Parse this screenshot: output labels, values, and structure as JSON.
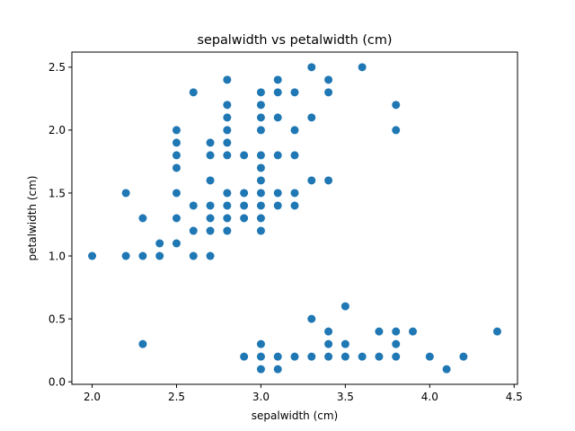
{
  "chart_data": {
    "type": "scatter",
    "title": "sepalwidth vs petalwidth (cm)",
    "xlabel": "sepalwidth (cm)",
    "ylabel": "petalwidth (cm)",
    "xlim": [
      1.88,
      4.52
    ],
    "ylim": [
      -0.02,
      2.62
    ],
    "xticks": [
      "2.0",
      "2.5",
      "3.0",
      "3.5",
      "4.0",
      "4.5"
    ],
    "yticks": [
      "0.0",
      "0.5",
      "1.0",
      "1.5",
      "2.0",
      "2.5"
    ],
    "grid": false,
    "marker_color": "#1f77b4",
    "points": [
      [
        2.0,
        1.0
      ],
      [
        2.2,
        1.5
      ],
      [
        2.2,
        1.0
      ],
      [
        2.3,
        1.3
      ],
      [
        2.3,
        1.0
      ],
      [
        2.3,
        0.3
      ],
      [
        2.4,
        1.1
      ],
      [
        2.4,
        1.0
      ],
      [
        2.5,
        2.0
      ],
      [
        2.5,
        1.9
      ],
      [
        2.5,
        1.8
      ],
      [
        2.5,
        1.7
      ],
      [
        2.5,
        1.5
      ],
      [
        2.5,
        1.3
      ],
      [
        2.5,
        1.1
      ],
      [
        2.6,
        2.3
      ],
      [
        2.6,
        1.4
      ],
      [
        2.6,
        1.2
      ],
      [
        2.6,
        1.0
      ],
      [
        2.7,
        1.9
      ],
      [
        2.7,
        1.8
      ],
      [
        2.7,
        1.6
      ],
      [
        2.7,
        1.4
      ],
      [
        2.7,
        1.3
      ],
      [
        2.7,
        1.2
      ],
      [
        2.7,
        1.0
      ],
      [
        2.8,
        2.4
      ],
      [
        2.8,
        2.2
      ],
      [
        2.8,
        2.1
      ],
      [
        2.8,
        2.0
      ],
      [
        2.8,
        1.9
      ],
      [
        2.8,
        1.8
      ],
      [
        2.8,
        1.5
      ],
      [
        2.8,
        1.4
      ],
      [
        2.8,
        1.3
      ],
      [
        2.8,
        1.2
      ],
      [
        2.9,
        1.8
      ],
      [
        2.9,
        1.5
      ],
      [
        2.9,
        1.4
      ],
      [
        2.9,
        1.3
      ],
      [
        2.9,
        0.2
      ],
      [
        3.0,
        2.3
      ],
      [
        3.0,
        2.2
      ],
      [
        3.0,
        2.1
      ],
      [
        3.0,
        2.0
      ],
      [
        3.0,
        1.8
      ],
      [
        3.0,
        1.7
      ],
      [
        3.0,
        1.6
      ],
      [
        3.0,
        1.5
      ],
      [
        3.0,
        1.4
      ],
      [
        3.0,
        1.3
      ],
      [
        3.0,
        1.2
      ],
      [
        3.0,
        0.3
      ],
      [
        3.0,
        0.2
      ],
      [
        3.0,
        0.1
      ],
      [
        3.1,
        2.4
      ],
      [
        3.1,
        2.3
      ],
      [
        3.1,
        2.1
      ],
      [
        3.1,
        1.8
      ],
      [
        3.1,
        1.5
      ],
      [
        3.1,
        1.4
      ],
      [
        3.1,
        0.2
      ],
      [
        3.1,
        0.1
      ],
      [
        3.2,
        2.3
      ],
      [
        3.2,
        2.0
      ],
      [
        3.2,
        1.8
      ],
      [
        3.2,
        1.5
      ],
      [
        3.2,
        1.4
      ],
      [
        3.2,
        0.2
      ],
      [
        3.3,
        2.5
      ],
      [
        3.3,
        2.1
      ],
      [
        3.3,
        1.6
      ],
      [
        3.3,
        0.5
      ],
      [
        3.3,
        0.2
      ],
      [
        3.4,
        2.4
      ],
      [
        3.4,
        2.3
      ],
      [
        3.4,
        1.6
      ],
      [
        3.4,
        0.4
      ],
      [
        3.4,
        0.3
      ],
      [
        3.4,
        0.2
      ],
      [
        3.5,
        0.6
      ],
      [
        3.5,
        0.3
      ],
      [
        3.5,
        0.2
      ],
      [
        3.6,
        2.5
      ],
      [
        3.6,
        0.2
      ],
      [
        3.7,
        0.4
      ],
      [
        3.7,
        0.2
      ],
      [
        3.8,
        2.2
      ],
      [
        3.8,
        2.0
      ],
      [
        3.8,
        0.4
      ],
      [
        3.8,
        0.3
      ],
      [
        3.8,
        0.2
      ],
      [
        3.9,
        0.4
      ],
      [
        4.0,
        0.2
      ],
      [
        4.1,
        0.1
      ],
      [
        4.2,
        0.2
      ],
      [
        4.4,
        0.4
      ]
    ]
  }
}
